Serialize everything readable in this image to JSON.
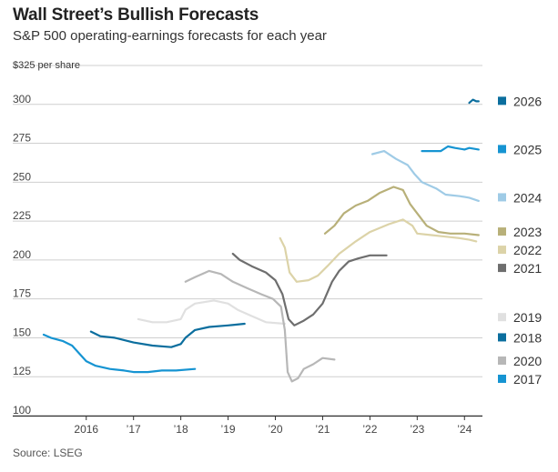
{
  "chart_data": {
    "type": "line",
    "title": "Wall Street’s Bullish Forecasts",
    "subtitle": "S&P 500 operating-earnings forecasts for each year",
    "ylabel": "$325 per share",
    "source": "Source: LSEG",
    "ylim": [
      100,
      325
    ],
    "xlim": [
      2015.1,
      2024.38
    ],
    "y_ticks": [
      {
        "value": 100,
        "label": "100"
      },
      {
        "value": 125,
        "label": "125"
      },
      {
        "value": 150,
        "label": "150"
      },
      {
        "value": 175,
        "label": "175"
      },
      {
        "value": 200,
        "label": "200"
      },
      {
        "value": 225,
        "label": "225"
      },
      {
        "value": 250,
        "label": "250"
      },
      {
        "value": 275,
        "label": "275"
      },
      {
        "value": 300,
        "label": "300"
      }
    ],
    "x_ticks": [
      {
        "value": 2016,
        "label": "2016"
      },
      {
        "value": 2017,
        "label": "’17"
      },
      {
        "value": 2018,
        "label": "’18"
      },
      {
        "value": 2019,
        "label": "’19"
      },
      {
        "value": 2020,
        "label": "’20"
      },
      {
        "value": 2021,
        "label": "’21"
      },
      {
        "value": 2022,
        "label": "’22"
      },
      {
        "value": 2023,
        "label": "’23"
      },
      {
        "value": 2024,
        "label": "’24"
      }
    ],
    "series": [
      {
        "name": "2017",
        "color": "#1694d2",
        "legend_value": 128,
        "points": [
          [
            2015.1,
            152
          ],
          [
            2015.25,
            150
          ],
          [
            2015.5,
            148
          ],
          [
            2015.7,
            145
          ],
          [
            2015.85,
            140
          ],
          [
            2016.0,
            135
          ],
          [
            2016.2,
            132
          ],
          [
            2016.5,
            130
          ],
          [
            2016.8,
            129
          ],
          [
            2017.0,
            128
          ],
          [
            2017.3,
            128
          ],
          [
            2017.6,
            129
          ],
          [
            2017.9,
            129
          ],
          [
            2018.3,
            130
          ]
        ]
      },
      {
        "name": "2018",
        "color": "#0b6e9e",
        "legend_value": 150,
        "points": [
          [
            2016.1,
            154
          ],
          [
            2016.3,
            151
          ],
          [
            2016.6,
            150
          ],
          [
            2017.0,
            147
          ],
          [
            2017.4,
            145
          ],
          [
            2017.8,
            144
          ],
          [
            2018.0,
            146
          ],
          [
            2018.1,
            150
          ],
          [
            2018.3,
            155
          ],
          [
            2018.6,
            157
          ],
          [
            2019.0,
            158
          ],
          [
            2019.35,
            159
          ]
        ]
      },
      {
        "name": "2019",
        "color": "#e0e0e0",
        "legend_value": 163,
        "points": [
          [
            2017.1,
            162
          ],
          [
            2017.4,
            160
          ],
          [
            2017.7,
            160
          ],
          [
            2018.0,
            162
          ],
          [
            2018.1,
            168
          ],
          [
            2018.3,
            172
          ],
          [
            2018.7,
            174
          ],
          [
            2019.0,
            172
          ],
          [
            2019.2,
            168
          ],
          [
            2019.5,
            164
          ],
          [
            2019.8,
            160
          ],
          [
            2020.2,
            159
          ]
        ]
      },
      {
        "name": "2020",
        "color": "#b7b7b7",
        "legend_value": 130,
        "points": [
          [
            2018.1,
            186
          ],
          [
            2018.3,
            189
          ],
          [
            2018.6,
            193
          ],
          [
            2018.85,
            191
          ],
          [
            2019.1,
            186
          ],
          [
            2019.4,
            182
          ],
          [
            2019.7,
            178
          ],
          [
            2019.95,
            175
          ],
          [
            2020.12,
            170
          ],
          [
            2020.2,
            155
          ],
          [
            2020.26,
            128
          ],
          [
            2020.35,
            122
          ],
          [
            2020.48,
            124
          ],
          [
            2020.6,
            130
          ],
          [
            2020.8,
            133
          ],
          [
            2021.0,
            137
          ],
          [
            2021.25,
            136
          ]
        ]
      },
      {
        "name": "2021",
        "color": "#6e6e6e",
        "legend_value": 200,
        "points": [
          [
            2019.1,
            204
          ],
          [
            2019.25,
            200
          ],
          [
            2019.5,
            196
          ],
          [
            2019.8,
            192
          ],
          [
            2020.0,
            187
          ],
          [
            2020.15,
            178
          ],
          [
            2020.28,
            162
          ],
          [
            2020.4,
            158
          ],
          [
            2020.6,
            161
          ],
          [
            2020.8,
            165
          ],
          [
            2021.0,
            172
          ],
          [
            2021.2,
            186
          ],
          [
            2021.35,
            193
          ],
          [
            2021.55,
            199
          ],
          [
            2021.75,
            201
          ],
          [
            2022.0,
            203
          ],
          [
            2022.35,
            203
          ]
        ]
      },
      {
        "name": "2022",
        "color": "#dcd3a8",
        "legend_value": 213,
        "points": [
          [
            2020.1,
            214
          ],
          [
            2020.2,
            208
          ],
          [
            2020.3,
            192
          ],
          [
            2020.45,
            186
          ],
          [
            2020.7,
            187
          ],
          [
            2020.9,
            190
          ],
          [
            2021.1,
            196
          ],
          [
            2021.35,
            204
          ],
          [
            2021.7,
            212
          ],
          [
            2022.0,
            218
          ],
          [
            2022.4,
            223
          ],
          [
            2022.7,
            226
          ],
          [
            2022.9,
            222
          ],
          [
            2023.0,
            217
          ],
          [
            2023.3,
            216
          ],
          [
            2023.6,
            215
          ],
          [
            2023.9,
            214
          ],
          [
            2024.1,
            213
          ],
          [
            2024.25,
            212
          ]
        ]
      },
      {
        "name": "2023",
        "color": "#b8b079",
        "legend_value": 218,
        "points": [
          [
            2021.05,
            217
          ],
          [
            2021.25,
            222
          ],
          [
            2021.45,
            230
          ],
          [
            2021.7,
            235
          ],
          [
            2021.95,
            238
          ],
          [
            2022.2,
            243
          ],
          [
            2022.5,
            247
          ],
          [
            2022.7,
            245
          ],
          [
            2022.85,
            236
          ],
          [
            2023.0,
            230
          ],
          [
            2023.2,
            222
          ],
          [
            2023.45,
            218
          ],
          [
            2023.7,
            217
          ],
          [
            2024.0,
            217
          ],
          [
            2024.3,
            216
          ]
        ]
      },
      {
        "name": "2024",
        "color": "#9fcbe6",
        "legend_value": 240,
        "points": [
          [
            2022.05,
            268
          ],
          [
            2022.3,
            270
          ],
          [
            2022.55,
            265
          ],
          [
            2022.8,
            261
          ],
          [
            2022.95,
            255
          ],
          [
            2023.1,
            250
          ],
          [
            2023.4,
            246
          ],
          [
            2023.6,
            242
          ],
          [
            2023.9,
            241
          ],
          [
            2024.1,
            240
          ],
          [
            2024.3,
            238
          ]
        ]
      },
      {
        "name": "2025",
        "color": "#1694d2",
        "legend_value": 271,
        "points": [
          [
            2023.1,
            270
          ],
          [
            2023.3,
            270
          ],
          [
            2023.5,
            270
          ],
          [
            2023.65,
            273
          ],
          [
            2023.8,
            272
          ],
          [
            2024.0,
            271
          ],
          [
            2024.1,
            272
          ],
          [
            2024.3,
            271
          ]
        ]
      },
      {
        "name": "2026",
        "color": "#0b6e9e",
        "legend_value": 302,
        "points": [
          [
            2024.1,
            301
          ],
          [
            2024.18,
            303
          ],
          [
            2024.25,
            302
          ],
          [
            2024.3,
            302
          ]
        ]
      }
    ],
    "legend": [
      {
        "label": "2026",
        "color": "#0b6e9e"
      },
      {
        "label": "2025",
        "color": "#1694d2"
      },
      {
        "label": "2024",
        "color": "#9fcbe6"
      },
      {
        "label": "2023",
        "color": "#b8b079"
      },
      {
        "label": "2022",
        "color": "#dcd3a8"
      },
      {
        "label": "2021",
        "color": "#6e6e6e"
      },
      {
        "label": "2019",
        "color": "#e0e0e0"
      },
      {
        "label": "2018",
        "color": "#0b6e9e"
      },
      {
        "label": "2020",
        "color": "#b7b7b7"
      },
      {
        "label": "2017",
        "color": "#1694d2"
      }
    ]
  }
}
